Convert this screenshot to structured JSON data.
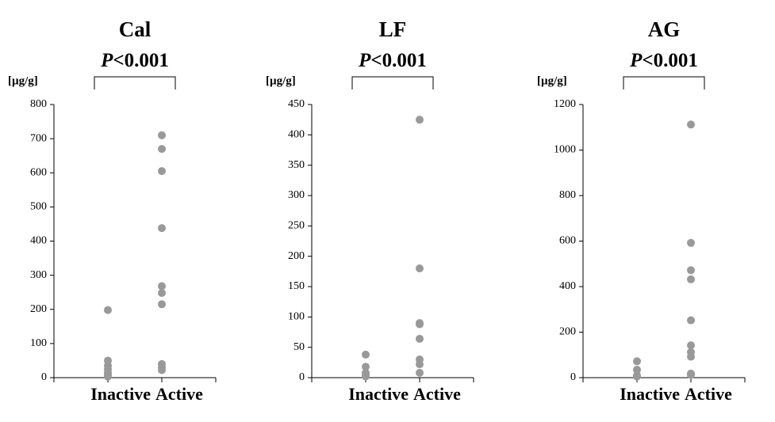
{
  "chart_data": [
    {
      "type": "strip",
      "title": "Cal",
      "annotation": [
        "P",
        "<0.001"
      ],
      "y_label": "[µg/g]",
      "categories": [
        "Inactive",
        "Active"
      ],
      "values": [
        [
          198,
          50,
          35,
          25,
          15,
          8,
          3
        ],
        [
          710,
          670,
          605,
          438,
          268,
          248,
          215,
          40,
          30,
          22
        ]
      ],
      "color": "#999999",
      "ylim": [
        0,
        800
      ],
      "yticks": [
        0,
        100,
        200,
        300,
        400,
        500,
        600,
        700,
        800
      ],
      "grid": false
    },
    {
      "type": "strip",
      "title": "LF",
      "annotation": [
        "P",
        "<0.001"
      ],
      "y_label": "[µg/g]",
      "categories": [
        "Inactive",
        "Active"
      ],
      "values": [
        [
          38,
          18,
          8,
          5,
          2
        ],
        [
          425,
          180,
          90,
          88,
          64,
          30,
          22,
          8
        ]
      ],
      "color": "#999999",
      "ylim": [
        0,
        450
      ],
      "yticks": [
        0,
        50,
        100,
        150,
        200,
        250,
        300,
        350,
        400,
        450
      ],
      "grid": false
    },
    {
      "type": "strip",
      "title": "AG",
      "annotation": [
        "P",
        "<0.001"
      ],
      "y_label": "[µg/g]",
      "categories": [
        "Inactive",
        "Active"
      ],
      "values": [
        [
          72,
          35,
          10,
          5
        ],
        [
          1112,
          592,
          472,
          432,
          252,
          142,
          112,
          92,
          18,
          12
        ]
      ],
      "color": "#999999",
      "ylim": [
        0,
        1200
      ],
      "yticks": [
        0,
        200,
        400,
        600,
        800,
        1000,
        1200
      ],
      "grid": false
    }
  ]
}
